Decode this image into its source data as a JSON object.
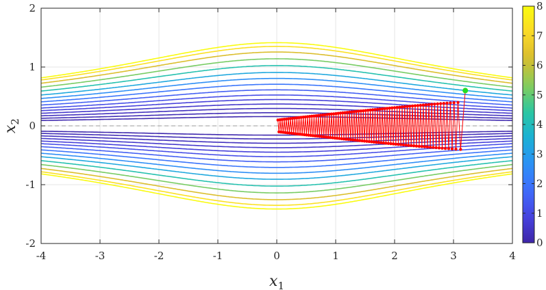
{
  "chart_data": {
    "type": "contour",
    "title": "",
    "xlabel": {
      "base": "x",
      "sub": "1"
    },
    "ylabel": {
      "base": "x",
      "sub": "2"
    },
    "xlim": [
      -4,
      4
    ],
    "ylim": [
      -2,
      2
    ],
    "x_ticks": [
      {
        "value": -4,
        "label": "-4"
      },
      {
        "value": -3,
        "label": "-3"
      },
      {
        "value": -2,
        "label": "-2"
      },
      {
        "value": -1,
        "label": "-1"
      },
      {
        "value": 0,
        "label": "0"
      },
      {
        "value": 1,
        "label": "1"
      },
      {
        "value": 2,
        "label": "2"
      },
      {
        "value": 3,
        "label": "3"
      },
      {
        "value": 4,
        "label": "4"
      }
    ],
    "y_ticks": [
      {
        "value": -2,
        "label": "-2"
      },
      {
        "value": -1,
        "label": "-1"
      },
      {
        "value": 0,
        "label": "0"
      },
      {
        "value": 1,
        "label": "1"
      },
      {
        "value": 2,
        "label": "2"
      }
    ],
    "grid": true,
    "reference_line": {
      "y": 0,
      "style": "dashed",
      "color": "#9a9a9a"
    },
    "contour_levels": [
      0.1,
      0.2,
      0.35,
      0.55,
      0.8,
      1.1,
      1.5,
      2.0,
      2.6,
      3.3,
      4.2,
      5.2,
      6.3,
      7.3,
      8.0
    ],
    "colorbar": {
      "range": [
        0,
        8
      ],
      "ticks": [
        {
          "value": 0,
          "label": "0"
        },
        {
          "value": 1,
          "label": "1"
        },
        {
          "value": 2,
          "label": "2"
        },
        {
          "value": 3,
          "label": "3"
        },
        {
          "value": 4,
          "label": "4"
        },
        {
          "value": 5,
          "label": "5"
        },
        {
          "value": 6,
          "label": "6"
        },
        {
          "value": 7,
          "label": "7"
        },
        {
          "value": 8,
          "label": "8"
        }
      ]
    },
    "trajectory": {
      "color": "#ff0000",
      "start_point": {
        "x": 3.2,
        "y": 0.6,
        "color": "#22dd22"
      },
      "x_start": 3.12,
      "x_end": 0.02,
      "amp_start": 0.4,
      "amp_end": 0.1,
      "steps": 150
    },
    "colors": {
      "axis": "#262626",
      "grid": "#e6e6e6",
      "colormap": [
        "#3e26a8",
        "#4743e0",
        "#3f6cfc",
        "#2c91f6",
        "#1ab1d5",
        "#2bc7a0",
        "#86cd5a",
        "#d8bb2e",
        "#fbd928",
        "#f9fb0e"
      ]
    }
  }
}
